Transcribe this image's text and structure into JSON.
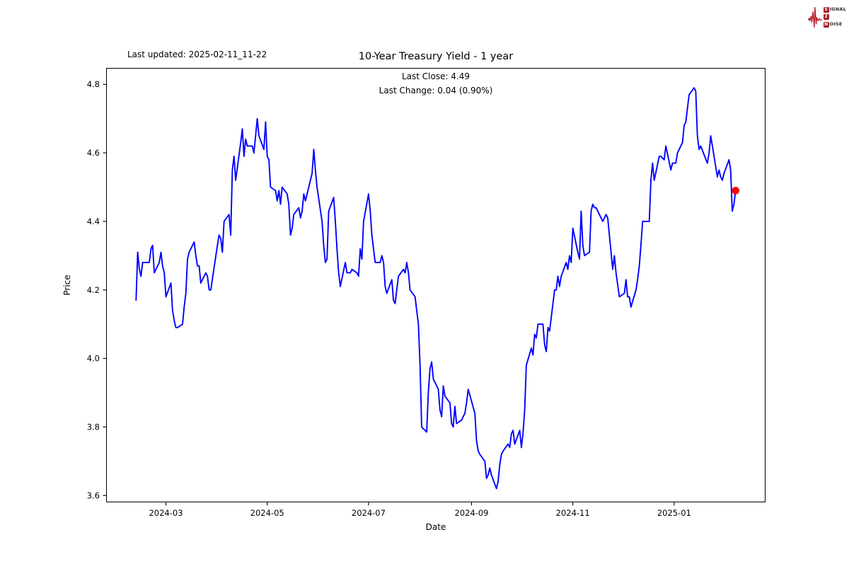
{
  "header": {
    "last_updated": "Last updated: 2025-02-11_11-22"
  },
  "branding": {
    "letter_s": "S",
    "word_signal": "IGNAL",
    "letter_2": "2",
    "letter_n": "N",
    "word_noise": "OISE",
    "accent_color": "#a81f2d"
  },
  "chart_data": {
    "type": "line",
    "title": "10-Year Treasury Yield - 1 year",
    "subtitle_line1": "Last Close: 4.49",
    "subtitle_line2": "Last Change: 0.04 (0.90%)",
    "xlabel": "Date",
    "ylabel": "Price",
    "last_close": 4.49,
    "last_change": 0.04,
    "last_change_pct": "0.90%",
    "line_color": "#0000ff",
    "last_point_color": "#ff0000",
    "axis_color": "#000000",
    "grid": false,
    "legend": "none",
    "x_range": [
      "2024-01-25",
      "2025-02-25"
    ],
    "y_range": [
      3.58,
      4.848
    ],
    "x_ticks": [
      {
        "date": "2024-03-01",
        "label": "2024-03"
      },
      {
        "date": "2024-05-01",
        "label": "2024-05"
      },
      {
        "date": "2024-07-01",
        "label": "2024-07"
      },
      {
        "date": "2024-09-01",
        "label": "2024-09"
      },
      {
        "date": "2024-11-01",
        "label": "2024-11"
      },
      {
        "date": "2025-01-01",
        "label": "2025-01"
      }
    ],
    "y_ticks": [
      {
        "value": 3.6,
        "label": "3.6"
      },
      {
        "value": 3.8,
        "label": "3.8"
      },
      {
        "value": 4.0,
        "label": "4.0"
      },
      {
        "value": 4.2,
        "label": "4.2"
      },
      {
        "value": 4.4,
        "label": "4.4"
      },
      {
        "value": 4.6,
        "label": "4.6"
      },
      {
        "value": 4.8,
        "label": "4.8"
      }
    ],
    "series": [
      [
        "2024-02-12",
        4.17
      ],
      [
        "2024-02-13",
        4.31
      ],
      [
        "2024-02-14",
        4.26
      ],
      [
        "2024-02-15",
        4.24
      ],
      [
        "2024-02-16",
        4.28
      ],
      [
        "2024-02-20",
        4.28
      ],
      [
        "2024-02-21",
        4.32
      ],
      [
        "2024-02-22",
        4.33
      ],
      [
        "2024-02-23",
        4.25
      ],
      [
        "2024-02-26",
        4.28
      ],
      [
        "2024-02-27",
        4.31
      ],
      [
        "2024-02-28",
        4.27
      ],
      [
        "2024-02-29",
        4.25
      ],
      [
        "2024-03-01",
        4.18
      ],
      [
        "2024-03-04",
        4.22
      ],
      [
        "2024-03-05",
        4.14
      ],
      [
        "2024-03-06",
        4.11
      ],
      [
        "2024-03-07",
        4.09
      ],
      [
        "2024-03-08",
        4.09
      ],
      [
        "2024-03-11",
        4.1
      ],
      [
        "2024-03-12",
        4.15
      ],
      [
        "2024-03-13",
        4.19
      ],
      [
        "2024-03-14",
        4.29
      ],
      [
        "2024-03-15",
        4.31
      ],
      [
        "2024-03-18",
        4.34
      ],
      [
        "2024-03-19",
        4.3
      ],
      [
        "2024-03-20",
        4.27
      ],
      [
        "2024-03-21",
        4.27
      ],
      [
        "2024-03-22",
        4.22
      ],
      [
        "2024-03-25",
        4.25
      ],
      [
        "2024-03-26",
        4.24
      ],
      [
        "2024-03-27",
        4.2
      ],
      [
        "2024-03-28",
        4.2
      ],
      [
        "2024-04-01",
        4.33
      ],
      [
        "2024-04-02",
        4.36
      ],
      [
        "2024-04-03",
        4.35
      ],
      [
        "2024-04-04",
        4.31
      ],
      [
        "2024-04-05",
        4.4
      ],
      [
        "2024-04-08",
        4.42
      ],
      [
        "2024-04-09",
        4.36
      ],
      [
        "2024-04-10",
        4.55
      ],
      [
        "2024-04-11",
        4.59
      ],
      [
        "2024-04-12",
        4.52
      ],
      [
        "2024-04-15",
        4.63
      ],
      [
        "2024-04-16",
        4.67
      ],
      [
        "2024-04-17",
        4.59
      ],
      [
        "2024-04-18",
        4.64
      ],
      [
        "2024-04-19",
        4.62
      ],
      [
        "2024-04-22",
        4.62
      ],
      [
        "2024-04-23",
        4.6
      ],
      [
        "2024-04-24",
        4.65
      ],
      [
        "2024-04-25",
        4.7
      ],
      [
        "2024-04-26",
        4.65
      ],
      [
        "2024-04-29",
        4.61
      ],
      [
        "2024-04-30",
        4.69
      ],
      [
        "2024-05-01",
        4.59
      ],
      [
        "2024-05-02",
        4.58
      ],
      [
        "2024-05-03",
        4.5
      ],
      [
        "2024-05-06",
        4.49
      ],
      [
        "2024-05-07",
        4.46
      ],
      [
        "2024-05-08",
        4.49
      ],
      [
        "2024-05-09",
        4.45
      ],
      [
        "2024-05-10",
        4.5
      ],
      [
        "2024-05-13",
        4.48
      ],
      [
        "2024-05-14",
        4.45
      ],
      [
        "2024-05-15",
        4.36
      ],
      [
        "2024-05-16",
        4.38
      ],
      [
        "2024-05-17",
        4.42
      ],
      [
        "2024-05-20",
        4.44
      ],
      [
        "2024-05-21",
        4.41
      ],
      [
        "2024-05-22",
        4.43
      ],
      [
        "2024-05-23",
        4.48
      ],
      [
        "2024-05-24",
        4.46
      ],
      [
        "2024-05-28",
        4.54
      ],
      [
        "2024-05-29",
        4.61
      ],
      [
        "2024-05-30",
        4.55
      ],
      [
        "2024-05-31",
        4.5
      ],
      [
        "2024-06-03",
        4.4
      ],
      [
        "2024-06-04",
        4.33
      ],
      [
        "2024-06-05",
        4.28
      ],
      [
        "2024-06-06",
        4.29
      ],
      [
        "2024-06-07",
        4.43
      ],
      [
        "2024-06-10",
        4.47
      ],
      [
        "2024-06-11",
        4.4
      ],
      [
        "2024-06-12",
        4.32
      ],
      [
        "2024-06-13",
        4.25
      ],
      [
        "2024-06-14",
        4.21
      ],
      [
        "2024-06-17",
        4.28
      ],
      [
        "2024-06-18",
        4.25
      ],
      [
        "2024-06-20",
        4.25
      ],
      [
        "2024-06-21",
        4.26
      ],
      [
        "2024-06-24",
        4.25
      ],
      [
        "2024-06-25",
        4.24
      ],
      [
        "2024-06-26",
        4.32
      ],
      [
        "2024-06-27",
        4.29
      ],
      [
        "2024-06-28",
        4.4
      ],
      [
        "2024-07-01",
        4.48
      ],
      [
        "2024-07-02",
        4.43
      ],
      [
        "2024-07-03",
        4.36
      ],
      [
        "2024-07-05",
        4.28
      ],
      [
        "2024-07-08",
        4.28
      ],
      [
        "2024-07-09",
        4.3
      ],
      [
        "2024-07-10",
        4.28
      ],
      [
        "2024-07-11",
        4.21
      ],
      [
        "2024-07-12",
        4.19
      ],
      [
        "2024-07-15",
        4.23
      ],
      [
        "2024-07-16",
        4.17
      ],
      [
        "2024-07-17",
        4.16
      ],
      [
        "2024-07-18",
        4.2
      ],
      [
        "2024-07-19",
        4.24
      ],
      [
        "2024-07-22",
        4.26
      ],
      [
        "2024-07-23",
        4.25
      ],
      [
        "2024-07-24",
        4.28
      ],
      [
        "2024-07-25",
        4.25
      ],
      [
        "2024-07-26",
        4.2
      ],
      [
        "2024-07-29",
        4.18
      ],
      [
        "2024-07-30",
        4.14
      ],
      [
        "2024-07-31",
        4.1
      ],
      [
        "2024-08-01",
        3.98
      ],
      [
        "2024-08-02",
        3.8
      ],
      [
        "2024-08-05",
        3.785
      ],
      [
        "2024-08-06",
        3.9
      ],
      [
        "2024-08-07",
        3.97
      ],
      [
        "2024-08-08",
        3.99
      ],
      [
        "2024-08-09",
        3.94
      ],
      [
        "2024-08-12",
        3.91
      ],
      [
        "2024-08-13",
        3.85
      ],
      [
        "2024-08-14",
        3.83
      ],
      [
        "2024-08-15",
        3.92
      ],
      [
        "2024-08-16",
        3.89
      ],
      [
        "2024-08-19",
        3.87
      ],
      [
        "2024-08-20",
        3.81
      ],
      [
        "2024-08-21",
        3.8
      ],
      [
        "2024-08-22",
        3.86
      ],
      [
        "2024-08-23",
        3.81
      ],
      [
        "2024-08-26",
        3.82
      ],
      [
        "2024-08-27",
        3.83
      ],
      [
        "2024-08-28",
        3.84
      ],
      [
        "2024-08-29",
        3.87
      ],
      [
        "2024-08-30",
        3.91
      ],
      [
        "2024-09-03",
        3.84
      ],
      [
        "2024-09-04",
        3.76
      ],
      [
        "2024-09-05",
        3.73
      ],
      [
        "2024-09-06",
        3.72
      ],
      [
        "2024-09-09",
        3.7
      ],
      [
        "2024-09-10",
        3.65
      ],
      [
        "2024-09-11",
        3.66
      ],
      [
        "2024-09-12",
        3.68
      ],
      [
        "2024-09-13",
        3.66
      ],
      [
        "2024-09-16",
        3.62
      ],
      [
        "2024-09-17",
        3.64
      ],
      [
        "2024-09-18",
        3.69
      ],
      [
        "2024-09-19",
        3.72
      ],
      [
        "2024-09-20",
        3.73
      ],
      [
        "2024-09-23",
        3.75
      ],
      [
        "2024-09-24",
        3.74
      ],
      [
        "2024-09-25",
        3.78
      ],
      [
        "2024-09-26",
        3.79
      ],
      [
        "2024-09-27",
        3.75
      ],
      [
        "2024-09-30",
        3.79
      ],
      [
        "2024-10-01",
        3.74
      ],
      [
        "2024-10-02",
        3.78
      ],
      [
        "2024-10-03",
        3.85
      ],
      [
        "2024-10-04",
        3.98
      ],
      [
        "2024-10-07",
        4.03
      ],
      [
        "2024-10-08",
        4.01
      ],
      [
        "2024-10-09",
        4.07
      ],
      [
        "2024-10-10",
        4.06
      ],
      [
        "2024-10-11",
        4.1
      ],
      [
        "2024-10-14",
        4.1
      ],
      [
        "2024-10-15",
        4.04
      ],
      [
        "2024-10-16",
        4.02
      ],
      [
        "2024-10-17",
        4.09
      ],
      [
        "2024-10-18",
        4.08
      ],
      [
        "2024-10-21",
        4.2
      ],
      [
        "2024-10-22",
        4.2
      ],
      [
        "2024-10-23",
        4.24
      ],
      [
        "2024-10-24",
        4.21
      ],
      [
        "2024-10-25",
        4.24
      ],
      [
        "2024-10-28",
        4.28
      ],
      [
        "2024-10-29",
        4.26
      ],
      [
        "2024-10-30",
        4.3
      ],
      [
        "2024-10-31",
        4.28
      ],
      [
        "2024-11-01",
        4.38
      ],
      [
        "2024-11-04",
        4.31
      ],
      [
        "2024-11-05",
        4.29
      ],
      [
        "2024-11-06",
        4.43
      ],
      [
        "2024-11-07",
        4.33
      ],
      [
        "2024-11-08",
        4.3
      ],
      [
        "2024-11-11",
        4.31
      ],
      [
        "2024-11-12",
        4.43
      ],
      [
        "2024-11-13",
        4.45
      ],
      [
        "2024-11-14",
        4.44
      ],
      [
        "2024-11-15",
        4.44
      ],
      [
        "2024-11-18",
        4.41
      ],
      [
        "2024-11-19",
        4.4
      ],
      [
        "2024-11-20",
        4.41
      ],
      [
        "2024-11-21",
        4.42
      ],
      [
        "2024-11-22",
        4.41
      ],
      [
        "2024-11-25",
        4.26
      ],
      [
        "2024-11-26",
        4.3
      ],
      [
        "2024-11-27",
        4.25
      ],
      [
        "2024-11-29",
        4.18
      ],
      [
        "2024-12-02",
        4.19
      ],
      [
        "2024-12-03",
        4.23
      ],
      [
        "2024-12-04",
        4.18
      ],
      [
        "2024-12-05",
        4.18
      ],
      [
        "2024-12-06",
        4.15
      ],
      [
        "2024-12-09",
        4.2
      ],
      [
        "2024-12-10",
        4.23
      ],
      [
        "2024-12-11",
        4.27
      ],
      [
        "2024-12-12",
        4.33
      ],
      [
        "2024-12-13",
        4.4
      ],
      [
        "2024-12-16",
        4.4
      ],
      [
        "2024-12-17",
        4.4
      ],
      [
        "2024-12-18",
        4.52
      ],
      [
        "2024-12-19",
        4.57
      ],
      [
        "2024-12-20",
        4.52
      ],
      [
        "2024-12-23",
        4.59
      ],
      [
        "2024-12-24",
        4.59
      ],
      [
        "2024-12-26",
        4.58
      ],
      [
        "2024-12-27",
        4.62
      ],
      [
        "2024-12-30",
        4.55
      ],
      [
        "2024-12-31",
        4.57
      ],
      [
        "2025-01-02",
        4.57
      ],
      [
        "2025-01-03",
        4.6
      ],
      [
        "2025-01-06",
        4.63
      ],
      [
        "2025-01-07",
        4.68
      ],
      [
        "2025-01-08",
        4.69
      ],
      [
        "2025-01-10",
        4.77
      ],
      [
        "2025-01-13",
        4.79
      ],
      [
        "2025-01-14",
        4.78
      ],
      [
        "2025-01-15",
        4.65
      ],
      [
        "2025-01-16",
        4.61
      ],
      [
        "2025-01-17",
        4.62
      ],
      [
        "2025-01-21",
        4.57
      ],
      [
        "2025-01-22",
        4.6
      ],
      [
        "2025-01-23",
        4.65
      ],
      [
        "2025-01-24",
        4.62
      ],
      [
        "2025-01-27",
        4.53
      ],
      [
        "2025-01-28",
        4.55
      ],
      [
        "2025-01-29",
        4.53
      ],
      [
        "2025-01-30",
        4.52
      ],
      [
        "2025-01-31",
        4.54
      ],
      [
        "2025-02-03",
        4.58
      ],
      [
        "2025-02-04",
        4.55
      ],
      [
        "2025-02-05",
        4.43
      ],
      [
        "2025-02-06",
        4.45
      ],
      [
        "2025-02-07",
        4.49
      ]
    ]
  }
}
